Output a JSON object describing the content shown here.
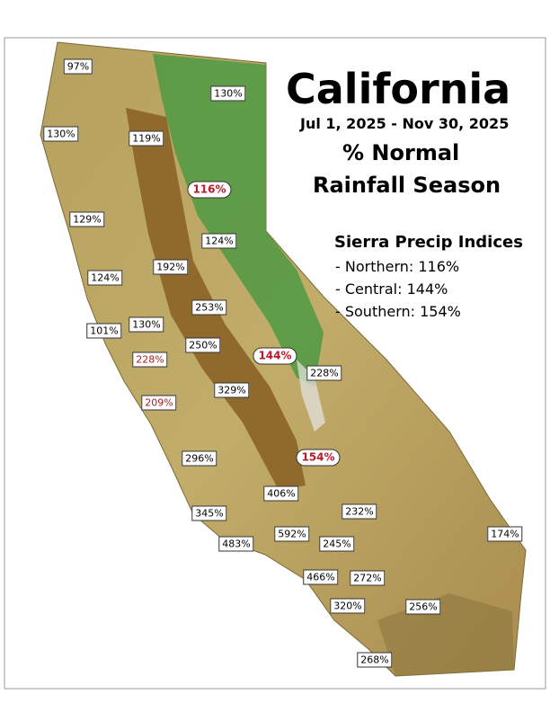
{
  "header": {
    "title": "California",
    "date_range": "Jul 1, 2025 - Nov 30, 2025",
    "subtitle_1": "% Normal",
    "subtitle_2": "Rainfall Season"
  },
  "sierra_indices": {
    "title": "Sierra Precip Indices",
    "items": [
      "- Northern: 116%",
      "- Central: 144%",
      "- Southern: 154%"
    ]
  },
  "stations": [
    "97%",
    "130%",
    "130%",
    "119%",
    "116%",
    "129%",
    "124%",
    "124%",
    "192%",
    "253%",
    "101%",
    "130%",
    "250%",
    "228%",
    "144%",
    "228%",
    "329%",
    "209%",
    "296%",
    "154%",
    "406%",
    "232%",
    "345%",
    "592%",
    "174%",
    "483%",
    "245%",
    "466%",
    "272%",
    "320%",
    "256%",
    "268%"
  ]
}
